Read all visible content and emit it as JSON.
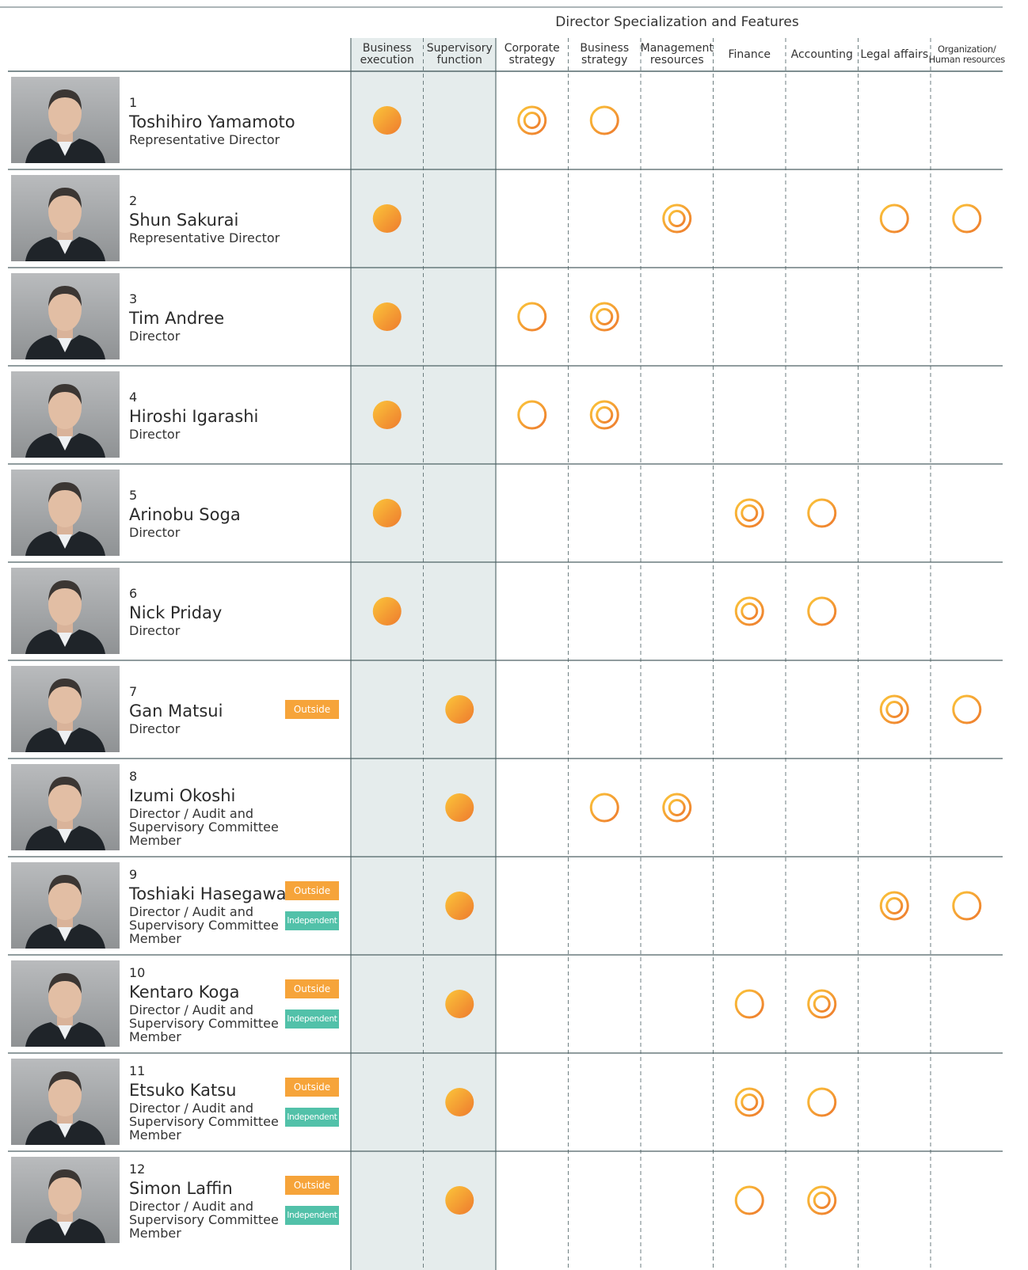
{
  "header": {
    "title": "Director Specialization and Features"
  },
  "columns": [
    [
      "Business",
      "execution"
    ],
    [
      "Supervisory",
      "function"
    ],
    [
      "Corporate",
      "strategy"
    ],
    [
      "Business",
      "strategy"
    ],
    [
      "Management",
      "resources"
    ],
    [
      "Finance"
    ],
    [
      "Accounting"
    ],
    [
      "Legal affairs"
    ],
    [
      "Organization/",
      "Human resources"
    ]
  ],
  "rows": [
    {
      "number": 1,
      "name": "Toshihiro Yamamoto",
      "role": "Representative Director",
      "badges": [],
      "marks": [
        "●",
        null,
        "◎",
        "○",
        null,
        null,
        null,
        null,
        null
      ]
    },
    {
      "number": 2,
      "name": "Shun Sakurai",
      "role": "Representative Director",
      "badges": [],
      "marks": [
        "●",
        null,
        null,
        null,
        "◎",
        null,
        null,
        "○",
        "○"
      ]
    },
    {
      "number": 3,
      "name": "Tim Andree",
      "role": "Director",
      "badges": [],
      "marks": [
        "●",
        null,
        "○",
        "◎",
        null,
        null,
        null,
        null,
        null
      ]
    },
    {
      "number": 4,
      "name": "Hiroshi Igarashi",
      "role": "Director",
      "badges": [],
      "marks": [
        "●",
        null,
        "○",
        "◎",
        null,
        null,
        null,
        null,
        null
      ]
    },
    {
      "number": 5,
      "name": "Arinobu Soga",
      "role": "Director",
      "badges": [],
      "marks": [
        "●",
        null,
        null,
        null,
        null,
        "◎",
        "○",
        null,
        null
      ]
    },
    {
      "number": 6,
      "name": "Nick Priday",
      "role": "Director",
      "badges": [],
      "marks": [
        "●",
        null,
        null,
        null,
        null,
        "◎",
        "○",
        null,
        null
      ]
    },
    {
      "number": 7,
      "name": "Gan Matsui",
      "role": "Director",
      "badges": [
        "Outside"
      ],
      "marks": [
        null,
        "●",
        null,
        null,
        null,
        null,
        null,
        "◎",
        "○"
      ]
    },
    {
      "number": 8,
      "name": "Izumi Okoshi",
      "role": "Director / Audit and Supervisory Committee Member",
      "badges": [],
      "marks": [
        null,
        "●",
        null,
        "○",
        "◎",
        null,
        null,
        null,
        null
      ]
    },
    {
      "number": 9,
      "name": "Toshiaki Hasegawa",
      "role": "Director / Audit and Supervisory Committee Member",
      "badges": [
        "Outside",
        "Independent"
      ],
      "marks": [
        null,
        "●",
        null,
        null,
        null,
        null,
        null,
        "◎",
        "○"
      ]
    },
    {
      "number": 10,
      "name": "Kentaro Koga",
      "role": "Director / Audit and Supervisory Committee Member",
      "badges": [
        "Outside",
        "Independent"
      ],
      "marks": [
        null,
        "●",
        null,
        null,
        null,
        "○",
        "◎",
        null,
        null
      ]
    },
    {
      "number": 11,
      "name": "Etsuko Katsu",
      "role": "Director / Audit and Supervisory Committee Member",
      "badges": [
        "Outside",
        "Independent"
      ],
      "marks": [
        null,
        "●",
        null,
        null,
        null,
        "◎",
        "○",
        null,
        null
      ]
    },
    {
      "number": 12,
      "name": "Simon Laffin",
      "role": "Director / Audit and Supervisory Committee Member",
      "badges": [
        "Outside",
        "Independent"
      ],
      "marks": [
        null,
        "●",
        null,
        null,
        null,
        "○",
        "◎",
        null,
        null
      ]
    }
  ]
}
